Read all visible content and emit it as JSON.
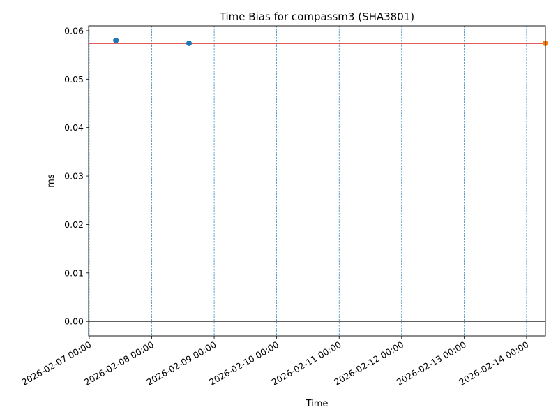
{
  "chart_data": {
    "type": "scatter",
    "title": "Time Bias for compassm3 (SHA3801)",
    "xlabel": "Time",
    "ylabel": "ms",
    "x_type": "datetime",
    "xlim": [
      "2026-02-06 23:45",
      "2026-02-14 07:15"
    ],
    "ylim": [
      -0.003,
      0.061
    ],
    "y_ticks": [
      0.0,
      0.01,
      0.02,
      0.03,
      0.04,
      0.05,
      0.06
    ],
    "y_tick_labels": [
      "0.00",
      "0.01",
      "0.02",
      "0.03",
      "0.04",
      "0.05",
      "0.06"
    ],
    "x_ticks": [
      "2026-02-07 00:00",
      "2026-02-08 00:00",
      "2026-02-09 00:00",
      "2026-02-10 00:00",
      "2026-02-11 00:00",
      "2026-02-12 00:00",
      "2026-02-13 00:00",
      "2026-02-14 00:00"
    ],
    "x_tick_labels": [
      "2026-02-07 00:00",
      "2026-02-08 00:00",
      "2026-02-09 00:00",
      "2026-02-10 00:00",
      "2026-02-11 00:00",
      "2026-02-12 00:00",
      "2026-02-13 00:00",
      "2026-02-14 00:00"
    ],
    "grid": "vertical dashed at x ticks",
    "series": [
      {
        "color": "#1f77b4",
        "points": [
          {
            "x": "2026-02-07 10:15",
            "y": 0.058
          },
          {
            "x": "2026-02-08 14:20",
            "y": 0.0574
          }
        ]
      },
      {
        "color": "#ff7f0e",
        "points": [
          {
            "x": "2026-02-14 07:10",
            "y": 0.0574
          }
        ]
      }
    ],
    "reference_lines": [
      {
        "orientation": "horizontal",
        "y": 0.0574,
        "color": "#d62728"
      },
      {
        "orientation": "horizontal",
        "y": 0.0,
        "color": "#000000"
      }
    ]
  }
}
